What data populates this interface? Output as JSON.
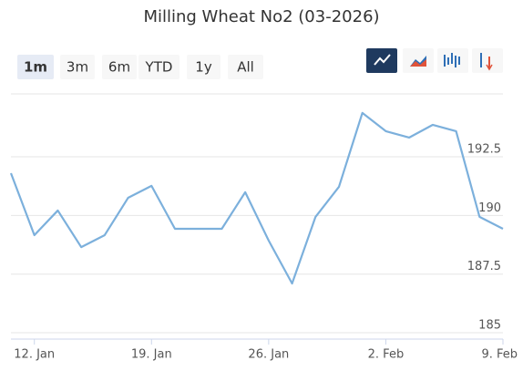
{
  "chart_data": {
    "type": "line",
    "title": "Milling Wheat No2 (03-2026)",
    "range_buttons": [
      "1m",
      "3m",
      "6m",
      "YTD",
      "1y",
      "All"
    ],
    "selected_range": 0,
    "categories": [
      null,
      "12. Jan",
      null,
      null,
      null,
      null,
      "19. Jan",
      null,
      null,
      null,
      null,
      "26. Jan",
      null,
      null,
      null,
      null,
      "2. Feb",
      null,
      null,
      null,
      null,
      "9. Feb"
    ],
    "series": [
      {
        "color": "#7cb0dc",
        "values": [
          191.8,
          189.16,
          190.21,
          188.65,
          189.16,
          190.75,
          191.26,
          189.43,
          189.43,
          189.43,
          190.99,
          188.93,
          187.1,
          189.94,
          191.22,
          194.37,
          193.59,
          193.32,
          193.86,
          193.59,
          189.94,
          189.43
        ]
      }
    ],
    "ylim": [
      184.73,
      195.18
    ],
    "yticks": [
      185,
      187.5,
      190,
      192.5
    ],
    "grid": true
  }
}
